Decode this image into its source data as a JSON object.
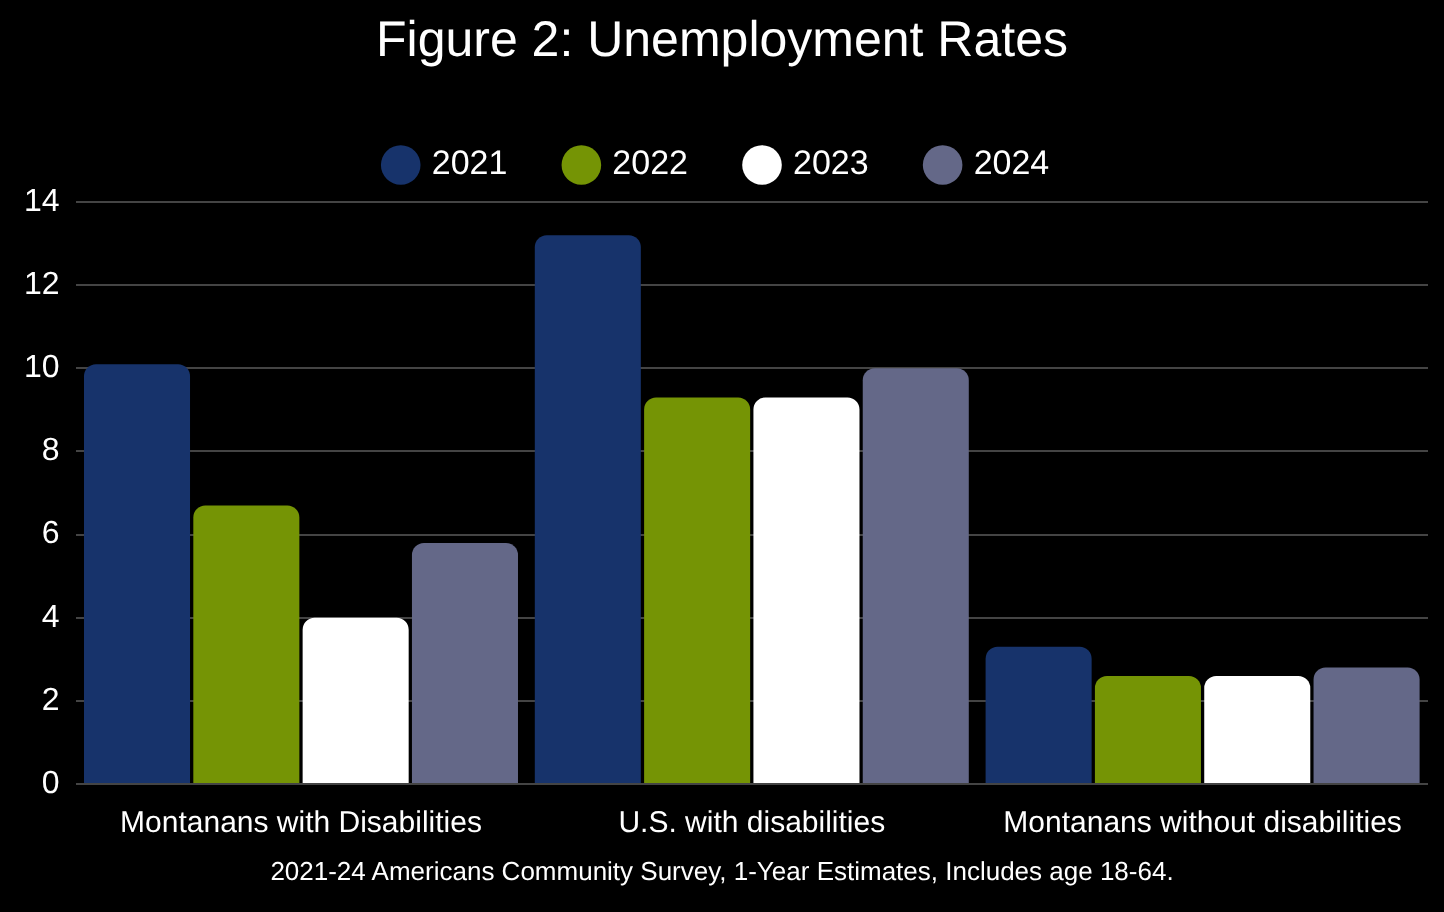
{
  "chart_data": {
    "type": "bar",
    "title": "Figure 2: Unemployment Rates",
    "categories": [
      "Montanans with Disabilities",
      "U.S. with disabilities",
      "Montanans without disabilities"
    ],
    "series": [
      {
        "name": "2021",
        "color": "#17336b",
        "values": [
          10.1,
          13.2,
          3.3
        ]
      },
      {
        "name": "2022",
        "color": "#759405",
        "values": [
          6.7,
          9.3,
          2.6
        ]
      },
      {
        "name": "2023",
        "color": "#ffffff",
        "values": [
          4.0,
          9.3,
          2.6
        ]
      },
      {
        "name": "2024",
        "color": "#646888",
        "values": [
          5.8,
          10.0,
          2.8
        ]
      }
    ],
    "ylim": [
      0,
      14
    ],
    "yticks": [
      0,
      2,
      4,
      6,
      8,
      10,
      12,
      14
    ],
    "grid": "y",
    "legend": "top",
    "annotations": [
      "2021-24 Americans Community Survey, 1-Year Estimates, Includes age 18-64."
    ]
  }
}
